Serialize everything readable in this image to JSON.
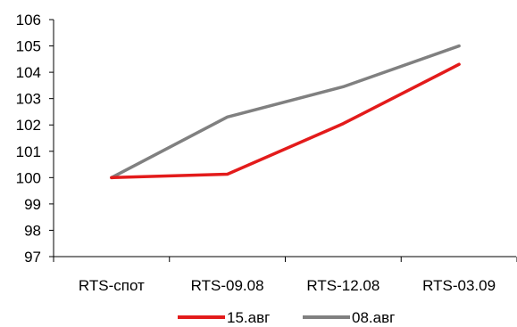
{
  "chart_data": {
    "type": "line",
    "categories": [
      "RTS-спот",
      "RTS-09.08",
      "RTS-12.08",
      "RTS-03.09"
    ],
    "series": [
      {
        "name": "15.авг",
        "color": "#e31b1b",
        "values": [
          100.0,
          100.13,
          102.05,
          104.3
        ]
      },
      {
        "name": "08.авг",
        "color": "#808080",
        "values": [
          100.0,
          102.3,
          103.45,
          105.0
        ]
      }
    ],
    "ylim": [
      97,
      106
    ],
    "yticks": [
      "97",
      "98",
      "99",
      "100",
      "101",
      "102",
      "103",
      "104",
      "105",
      "106"
    ],
    "grid": false,
    "legend_position": "bottom"
  }
}
